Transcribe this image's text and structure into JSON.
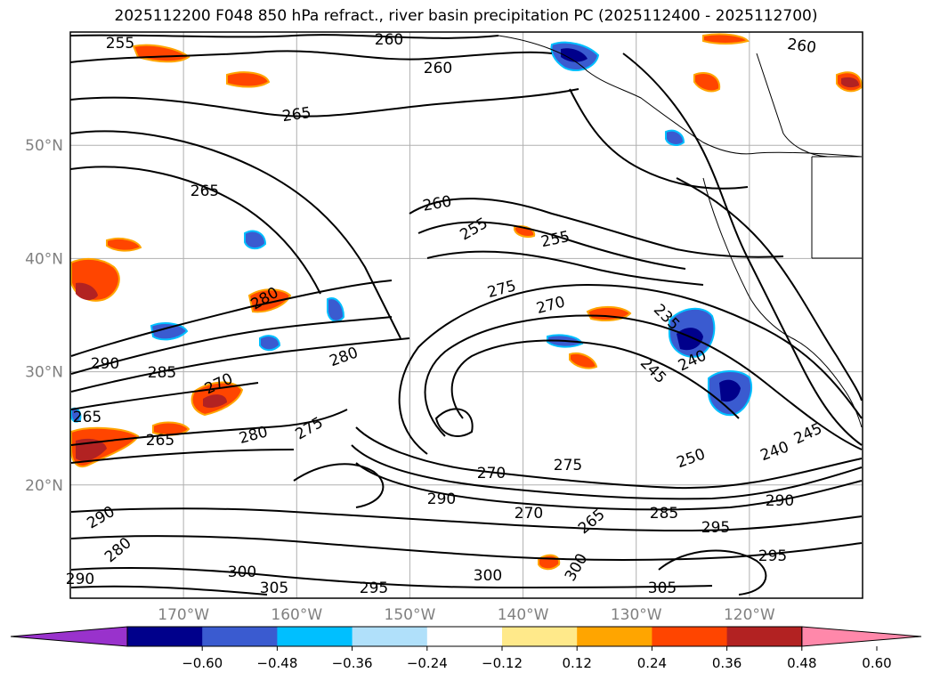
{
  "title": "2025112200 F048 850 hPa refract., river basin precipitation PC (2025112400 - 2025112700)",
  "map": {
    "lon_range": [
      -180,
      -110
    ],
    "lat_range": [
      10,
      60
    ],
    "lat_labels": [
      "50°N",
      "40°N",
      "30°N",
      "20°N"
    ],
    "lat_values": [
      50,
      40,
      30,
      20
    ],
    "lon_labels": [
      "170°W",
      "160°W",
      "150°W",
      "140°W",
      "130°W",
      "120°W"
    ],
    "lon_values": [
      -170,
      -160,
      -150,
      -140,
      -130,
      -120
    ],
    "grid": true,
    "tick_label_color": "#808080"
  },
  "contours": {
    "variable": "850 hPa refractivity",
    "color": "#000000",
    "labels": [
      "255",
      "260",
      "260",
      "260",
      "265",
      "265",
      "260",
      "255",
      "255",
      "275",
      "270",
      "235",
      "240",
      "245",
      "280",
      "280",
      "290",
      "285",
      "270",
      "265",
      "280",
      "275",
      "265",
      "270",
      "275",
      "290",
      "250",
      "240",
      "245",
      "290",
      "295",
      "300",
      "305",
      "295",
      "300",
      "305",
      "290",
      "265",
      "270",
      "285",
      "280",
      "300",
      "295",
      "290"
    ]
  },
  "colorbar": {
    "ticks": [
      "−0.60",
      "−0.48",
      "−0.36",
      "−0.24",
      "−0.12",
      "0.12",
      "0.24",
      "0.36",
      "0.48",
      "0.60"
    ],
    "colors": [
      "#9932cc",
      "#00008b",
      "#3a5bd0",
      "#00bfff",
      "#b0e0fa",
      "#ffffff",
      "#ffe98a",
      "#ffa500",
      "#ff4500",
      "#b22222",
      "#ff88aa"
    ],
    "extend": "both"
  }
}
